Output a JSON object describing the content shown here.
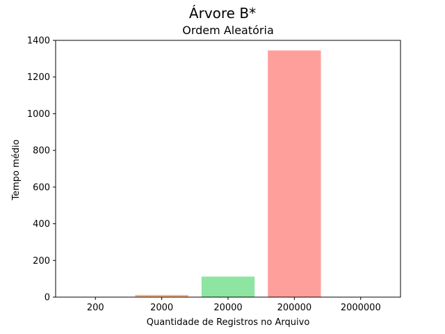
{
  "chart_data": {
    "type": "bar",
    "suptitle": "Árvore B*",
    "title": "Ordem Aleatória",
    "xlabel": "Quantidade de Registros no Arquivo",
    "ylabel": "Tempo médio",
    "categories": [
      "200",
      "2000",
      "20000",
      "200000",
      "2000000"
    ],
    "values": [
      0.3,
      12,
      112,
      1345,
      0
    ],
    "colors": [
      "#a1c9f4",
      "#ffb482",
      "#8de5a1",
      "#ff9f9b",
      "#d0bbff"
    ],
    "ylim": [
      0,
      1400
    ],
    "yticks": [
      0,
      200,
      400,
      600,
      800,
      1000,
      1200,
      1400
    ],
    "grid": false,
    "legend": "none"
  }
}
